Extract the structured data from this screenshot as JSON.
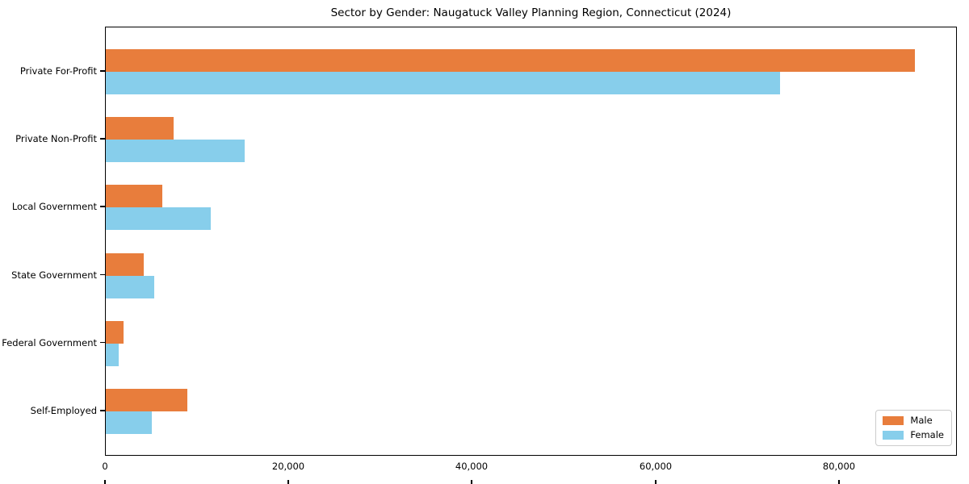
{
  "title": "Sector by Gender: Naugatuck Valley Planning Region, Connecticut (2024)",
  "chart_data": {
    "type": "bar",
    "orientation": "horizontal",
    "title": "Sector by Gender: Naugatuck Valley Planning Region, Connecticut (2024)",
    "categories": [
      "Private For-Profit",
      "Private Non-Profit",
      "Local Government",
      "State Government",
      "Federal Government",
      "Self-Employed"
    ],
    "series": [
      {
        "name": "Male",
        "color": "#e87d3c",
        "values": [
          88200,
          7400,
          6200,
          4100,
          1900,
          8900
        ]
      },
      {
        "name": "Female",
        "color": "#87ceeb",
        "values": [
          73500,
          15100,
          11400,
          5300,
          1400,
          5000
        ]
      }
    ],
    "xlabel": "",
    "ylabel": "",
    "xlim": [
      0,
      92600
    ],
    "xticks": [
      0,
      20000,
      40000,
      60000,
      80000
    ],
    "xtick_labels": [
      "0",
      "20,000",
      "40,000",
      "60,000",
      "80,000"
    ],
    "grid": false,
    "legend_position": "lower right",
    "background_color": "#ffffff",
    "spine_color": "#000000"
  }
}
